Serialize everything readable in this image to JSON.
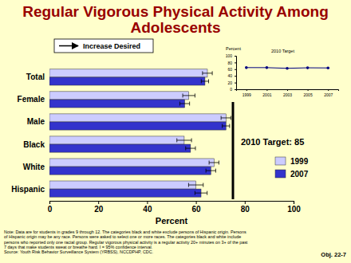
{
  "chart_data": [
    {
      "type": "bar",
      "orientation": "horizontal",
      "title": "Regular Vigorous Physical Activity Among Adolescents",
      "categories": [
        "Total",
        "Female",
        "Male",
        "Black",
        "White",
        "Hispanic"
      ],
      "series": [
        {
          "name": "1999",
          "color": "#ccccff",
          "values": [
            64.7,
            57.1,
            72.3,
            55.2,
            67.4,
            60.0
          ],
          "error": [
            2,
            2.5,
            2,
            3,
            2,
            3
          ]
        },
        {
          "name": "2007",
          "color": "#3333cc",
          "values": [
            63.7,
            55.4,
            72.3,
            57.8,
            66.1,
            62.1
          ],
          "error": [
            1.5,
            2,
            1.5,
            2,
            2,
            2.5
          ]
        }
      ],
      "xlim": [
        0,
        100
      ],
      "xticks": [
        0,
        20,
        40,
        60,
        80,
        100
      ],
      "x_label": "Percent",
      "legend": "right",
      "annotations": [
        "Increase Desired",
        "2010 Target: 85"
      ],
      "note": [
        "Note: Data are for students in grades 9 through 12. The categories black and white exclude persons of Hispanic origin. Persons",
        "of Hispanic origin may be any race. Persons were asked to select one or more races. The categories black and white include",
        "persons who reported only one racial group. Regular vigorous physical activity is a regular activity 20+ minutes on 3+ of the past",
        "7 days that make students sweat or breathe hard. I = 95% confidence interval."
      ],
      "source": "Source: Youth Risk Behavior Surveillance System (YRBSS), NCCDPHP, CDC.",
      "footer": "Obj. 22-7"
    },
    {
      "type": "line",
      "categories": [
        "1999",
        "2001",
        "2003",
        "2005",
        "2007"
      ],
      "values": [
        64.7,
        64.6,
        62.6,
        64.1,
        63.7
      ],
      "color": "#000080",
      "marker": "circle",
      "ylim": [
        0,
        100
      ],
      "yticks": [
        0,
        20,
        40,
        60,
        80,
        100
      ],
      "y_label": "Percent",
      "annotations": [
        "2010 Target"
      ]
    }
  ]
}
